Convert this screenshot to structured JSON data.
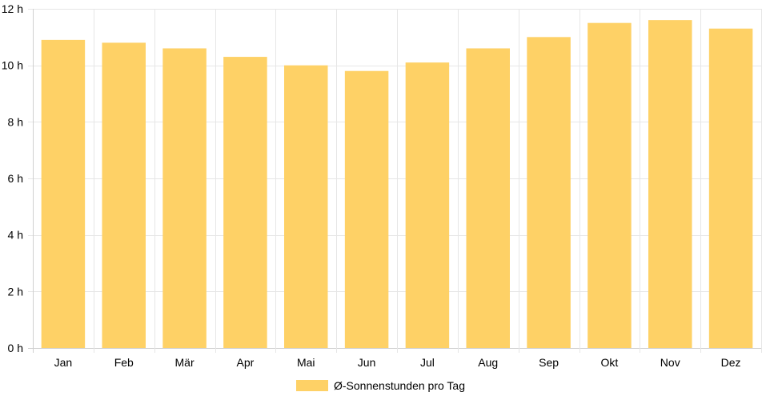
{
  "chart_data": {
    "type": "bar",
    "categories": [
      "Jan",
      "Feb",
      "Mär",
      "Apr",
      "Mai",
      "Jun",
      "Jul",
      "Aug",
      "Sep",
      "Okt",
      "Nov",
      "Dez"
    ],
    "series": [
      {
        "name": "Ø-Sonnenstunden pro Tag",
        "values": [
          10.9,
          10.8,
          10.6,
          10.3,
          10.0,
          9.8,
          10.1,
          10.6,
          11.0,
          11.5,
          11.6,
          11.3
        ]
      }
    ],
    "title": "",
    "xlabel": "",
    "ylabel": "",
    "ylim": [
      0,
      12
    ],
    "yticks": [
      0,
      2,
      4,
      6,
      8,
      10,
      12
    ],
    "ytick_suffix": " h",
    "grid": true,
    "legend_position": "bottom",
    "bar_color": "#fed166"
  }
}
